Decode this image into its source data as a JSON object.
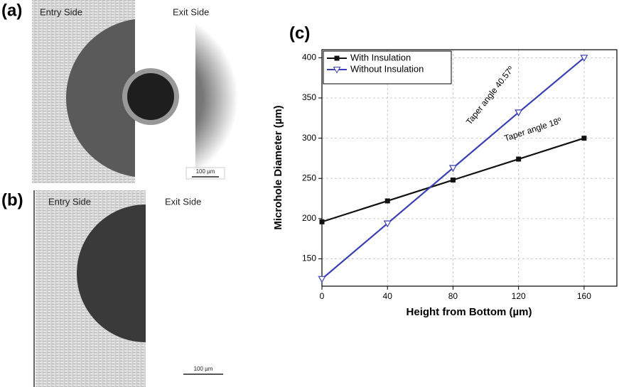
{
  "panels": [
    {
      "label": "(a)",
      "entry_label": "Entry  Side",
      "exit_label": "Exit Side",
      "scale_label": "100 µm"
    },
    {
      "label": "(b)",
      "entry_label": "Entry  Side",
      "exit_label": "Exit  Side",
      "scale_label": "100 µm"
    }
  ],
  "chart_label": "(c)",
  "chart_data": {
    "type": "line",
    "x_label": "Height from Bottom (µm)",
    "y_label": "Microhole Diameter (µm)",
    "x": [
      0,
      40,
      80,
      120,
      160
    ],
    "series": [
      {
        "name": "With Insulation",
        "color": "#111111",
        "marker": "square",
        "values": [
          196,
          222,
          248,
          274,
          300
        ]
      },
      {
        "name": "Without Insulation",
        "color": "#3b3fb4",
        "marker": "triangle-down",
        "values": [
          125,
          194,
          263,
          332,
          400
        ]
      }
    ],
    "annotations": [
      "Taper angle 40.57º",
      "Taper angle 18º"
    ],
    "xlim": [
      0,
      180
    ],
    "xticks": [
      0,
      40,
      80,
      120,
      160
    ],
    "ylim": [
      116,
      410
    ],
    "yticks": [
      150,
      200,
      250,
      300,
      350,
      400
    ],
    "grid": true,
    "legend": "upper-left"
  }
}
